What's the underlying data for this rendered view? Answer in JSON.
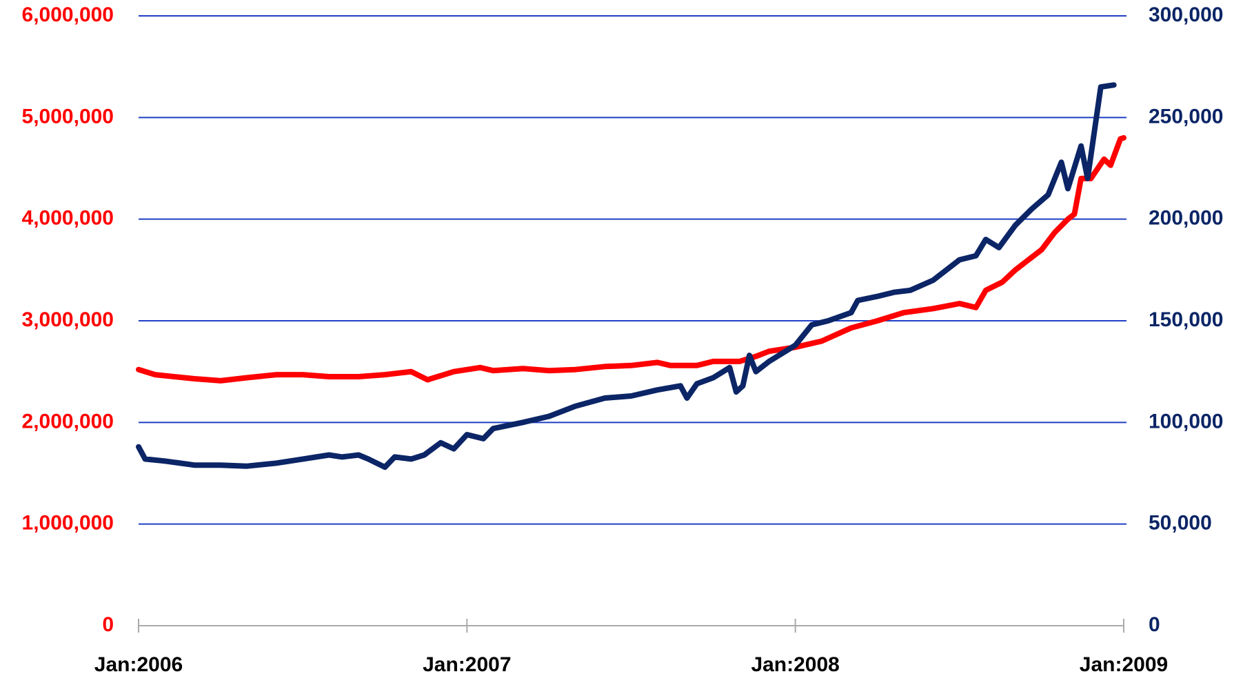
{
  "chart_data": {
    "type": "line",
    "xlim": [
      2006,
      2009
    ],
    "xticks": [
      {
        "value": 2006,
        "label": "Jan:2006"
      },
      {
        "value": 2007,
        "label": "Jan:2007"
      },
      {
        "value": 2008,
        "label": "Jan:2008"
      },
      {
        "value": 2009,
        "label": "Jan:2009"
      }
    ],
    "ylim": [
      0,
      6000000
    ],
    "yticks": [
      0,
      {
        "value": 1000000,
        "label": "1,000,000"
      },
      {
        "value": 2000000,
        "label": "2,000,000"
      },
      {
        "value": 3000000,
        "label": "3,000,000"
      },
      {
        "value": 4000000,
        "label": "4,000,000"
      },
      {
        "value": 5000000,
        "label": "5,000,000"
      },
      {
        "value": 6000000,
        "label": "6,000,000"
      }
    ],
    "y2lim": [
      0,
      300000
    ],
    "y2ticks": [
      0,
      {
        "value": 50000,
        "label": "50,000"
      },
      {
        "value": 100000,
        "label": "100,000"
      },
      {
        "value": 150000,
        "label": "150,000"
      },
      {
        "value": 200000,
        "label": "200,000"
      },
      {
        "value": 250000,
        "label": "250,000"
      },
      {
        "value": 300000,
        "label": "300,000"
      }
    ],
    "ytick_color": "#ff0000",
    "y2tick_color": "#0b2566",
    "grid": true,
    "grid_color": "#1f3fc4",
    "series": [
      {
        "color": "#ff0000",
        "axis": "y",
        "x": [
          2006.0,
          2006.05,
          2006.17,
          2006.25,
          2006.33,
          2006.42,
          2006.5,
          2006.58,
          2006.67,
          2006.75,
          2006.83,
          2006.88,
          2006.96,
          2007.04,
          2007.08,
          2007.17,
          2007.25,
          2007.33,
          2007.42,
          2007.5,
          2007.58,
          2007.62,
          2007.7,
          2007.75,
          2007.83,
          2007.88,
          2007.92,
          2008.0,
          2008.08,
          2008.17,
          2008.25,
          2008.33,
          2008.42,
          2008.5,
          2008.55,
          2008.58,
          2008.63,
          2008.67,
          2008.75,
          2008.79,
          2008.83,
          2008.85,
          2008.87,
          2008.9,
          2008.94,
          2008.96,
          2008.99,
          2009.0
        ],
        "values": [
          2520000,
          2470000,
          2430000,
          2410000,
          2440000,
          2470000,
          2470000,
          2450000,
          2450000,
          2470000,
          2500000,
          2420000,
          2500000,
          2540000,
          2510000,
          2530000,
          2510000,
          2520000,
          2550000,
          2560000,
          2590000,
          2560000,
          2560000,
          2600000,
          2600000,
          2650000,
          2700000,
          2740000,
          2800000,
          2930000,
          3000000,
          3080000,
          3120000,
          3170000,
          3130000,
          3300000,
          3380000,
          3500000,
          3700000,
          3870000,
          4000000,
          4050000,
          4400000,
          4400000,
          4590000,
          4530000,
          4790000,
          4800000
        ]
      },
      {
        "color": "#0b2566",
        "axis": "y2",
        "x": [
          2006.0,
          2006.02,
          2006.08,
          2006.17,
          2006.25,
          2006.33,
          2006.42,
          2006.5,
          2006.58,
          2006.62,
          2006.67,
          2006.7,
          2006.75,
          2006.78,
          2006.83,
          2006.87,
          2006.92,
          2006.96,
          2007.0,
          2007.05,
          2007.08,
          2007.17,
          2007.25,
          2007.33,
          2007.42,
          2007.5,
          2007.58,
          2007.65,
          2007.67,
          2007.7,
          2007.75,
          2007.8,
          2007.82,
          2007.84,
          2007.86,
          2007.88,
          2007.92,
          2008.0,
          2008.05,
          2008.1,
          2008.17,
          2008.19,
          2008.25,
          2008.3,
          2008.35,
          2008.42,
          2008.5,
          2008.55,
          2008.58,
          2008.62,
          2008.67,
          2008.72,
          2008.77,
          2008.81,
          2008.83,
          2008.87,
          2008.89,
          2008.93,
          2008.97
        ],
        "values": [
          88000,
          82000,
          81000,
          79000,
          79000,
          78500,
          80000,
          82000,
          84000,
          83000,
          84000,
          82000,
          78000,
          83000,
          82000,
          84000,
          90000,
          87000,
          94000,
          92000,
          97000,
          100000,
          103000,
          108000,
          112000,
          113000,
          116000,
          118000,
          112000,
          119000,
          122000,
          127000,
          115000,
          118000,
          133000,
          125000,
          130000,
          138000,
          148000,
          150000,
          154000,
          160000,
          162000,
          164000,
          165000,
          170000,
          180000,
          182000,
          190000,
          186000,
          197000,
          205000,
          212000,
          228000,
          215000,
          236000,
          220000,
          265000,
          266000
        ]
      }
    ]
  }
}
